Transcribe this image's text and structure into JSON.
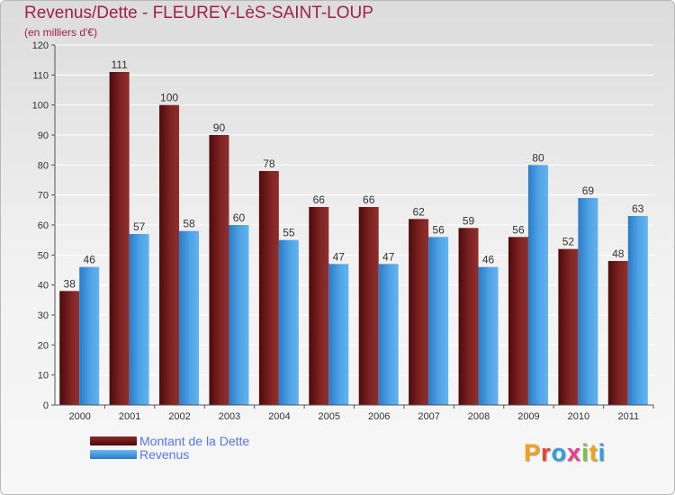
{
  "title": "Revenus/Dette - FLEUREY-LèS-SAINT-LOUP",
  "subtitle": "(en milliers d'€)",
  "logo_text": "Proxiti",
  "colors": {
    "title": "#a1204a",
    "dette_dark": "#5a0e0e",
    "dette_light": "#8a2a2a",
    "revenus_dark": "#2b7fc8",
    "revenus_light": "#5aaeec",
    "label": "#333333",
    "legend_text": "#5577ee"
  },
  "chart_data": {
    "type": "bar",
    "categories": [
      "2000",
      "2001",
      "2002",
      "2003",
      "2004",
      "2005",
      "2006",
      "2007",
      "2008",
      "2009",
      "2010",
      "2011"
    ],
    "series": [
      {
        "name": "Montant de la Dette",
        "values": [
          38,
          111,
          100,
          90,
          78,
          66,
          66,
          62,
          59,
          56,
          52,
          48
        ]
      },
      {
        "name": "Revenus",
        "values": [
          46,
          57,
          58,
          60,
          55,
          47,
          47,
          56,
          46,
          80,
          69,
          63
        ]
      }
    ],
    "ylim": [
      0,
      120
    ],
    "yticks": [
      0,
      10,
      20,
      30,
      40,
      50,
      60,
      70,
      80,
      90,
      100,
      110,
      120
    ],
    "grid": true,
    "legend_position": "bottom-left"
  }
}
